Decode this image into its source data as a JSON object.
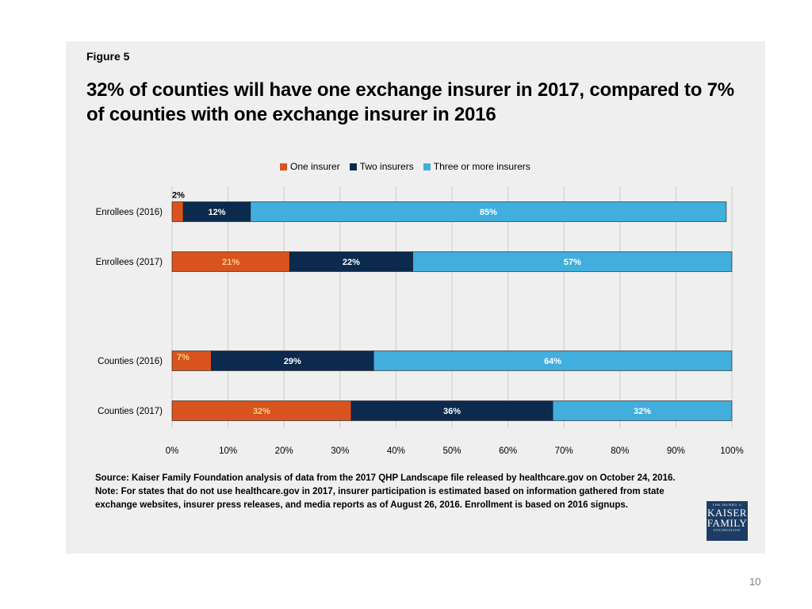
{
  "figure_label": "Figure 5",
  "title": "32% of counties will have one exchange insurer in 2017, compared to 7% of counties with one exchange insurer in 2016",
  "source_note": "Source: Kaiser Family Foundation analysis of data from the 2017 QHP Landscape file released by healthcare.gov on October 24, 2016. Note: For states that do not use healthcare.gov in 2017, insurer participation is estimated based on information gathered from state exchange websites, insurer press releases, and media reports as of August 26, 2016. Enrollment is based on 2016 signups.",
  "logo": {
    "top": "THE HENRY J.",
    "line1": "KAISER",
    "line2": "FAMILY",
    "bottom": "FOUNDATION"
  },
  "page_number": "10",
  "colors": {
    "one": "#d9531e",
    "two": "#0c2a4d",
    "three": "#41aedd",
    "grid": "#cccccc"
  },
  "chart_data": {
    "type": "bar",
    "orientation": "horizontal",
    "stacked": "percent",
    "categories": [
      "Enrollees (2016)",
      "Enrollees (2017)",
      "Counties (2016)",
      "Counties (2017)"
    ],
    "series": [
      {
        "name": "One insurer",
        "values": [
          2,
          21,
          7,
          32
        ],
        "labels": [
          "2%",
          "21%",
          "7%",
          "32%"
        ]
      },
      {
        "name": "Two insurers",
        "values": [
          12,
          22,
          29,
          36
        ],
        "labels": [
          "12%",
          "22%",
          "29%",
          "36%"
        ]
      },
      {
        "name": "Three or more insurers",
        "values": [
          85,
          57,
          64,
          32
        ],
        "labels": [
          "85%",
          "57%",
          "64%",
          "32%"
        ]
      }
    ],
    "x_ticks": [
      "0%",
      "10%",
      "20%",
      "30%",
      "40%",
      "50%",
      "60%",
      "70%",
      "80%",
      "90%",
      "100%"
    ],
    "xlim": [
      0,
      100
    ],
    "grid": true,
    "legend_position": "top"
  }
}
